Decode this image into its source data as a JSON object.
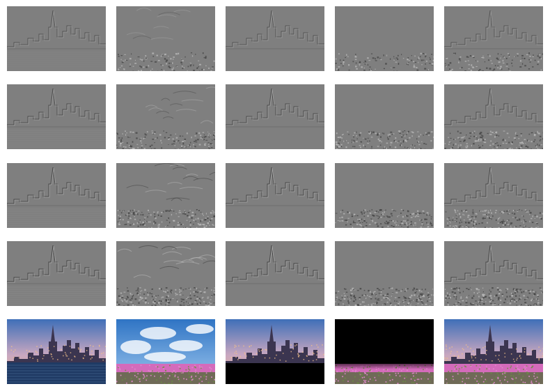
{
  "figure": {
    "row_kinds": [
      "detail-level-1",
      "detail-level-2",
      "detail-level-3",
      "detail-level-4",
      "color-image"
    ],
    "column_kinds": [
      "skyline",
      "flower-field",
      "skyline-top-black-bottom",
      "black-top-flower-bottom",
      "skyline-over-flowers"
    ],
    "colors": {
      "background": "#ffffff",
      "detail_gray": "#7f7f7f",
      "detail_line_dark": "#3e3e3e",
      "detail_line_light": "#bdbdbd",
      "sky_top": "#3f6fb8",
      "sky_mid": "#c8a7c0",
      "water": "#1f3a64",
      "cloud_sky": "#5f9bd8",
      "flowers": "#d46bbb",
      "grass": "#4d6a35",
      "black": "#000000"
    },
    "detail_strength": [
      0.55,
      0.75,
      0.9,
      1.0
    ]
  }
}
